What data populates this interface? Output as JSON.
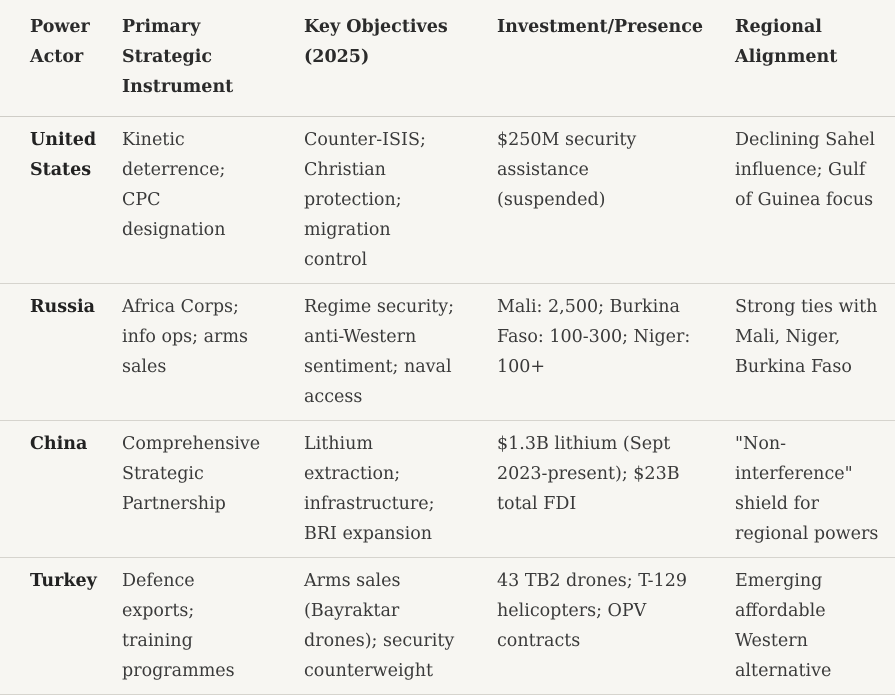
{
  "headers": [
    "Power Actor",
    "Primary Strategic Instrument",
    "Key Objectives (2025)",
    "Investment/Presence",
    "Regional Alignment"
  ],
  "rows": [
    {
      "actor": "United States",
      "instrument": "Kinetic deterrence; CPC designation",
      "objectives": "Counter-ISIS; Christian protection; migration control",
      "investment": "$250M security assistance (suspended)",
      "alignment": "Declining Sahel influence; Gulf of Guinea focus"
    },
    {
      "actor": "Russia",
      "instrument": "Africa Corps; info ops; arms sales",
      "objectives": "Regime security; anti-Western sentiment; naval access",
      "investment": "Mali: 2,500; Burkina Faso: 100-300; Niger: 100+",
      "alignment": "Strong ties with Mali, Niger, Burkina Faso"
    },
    {
      "actor": "China",
      "instrument": "Comprehensive Strategic Partnership",
      "objectives": "Lithium extraction; infrastructure; BRI expansion",
      "investment": "$1.3B lithium (Sept 2023-present); $23B total FDI",
      "alignment": "\"Non-interference\" shield for regional powers"
    },
    {
      "actor": "Turkey",
      "instrument": "Defence exports; training programmes",
      "objectives": "Arms sales (Bayraktar drones); security counterweight",
      "investment": "43 TB2 drones; T-129 helicopters; OPV contracts",
      "alignment": "Emerging affordable Western alternative"
    }
  ]
}
